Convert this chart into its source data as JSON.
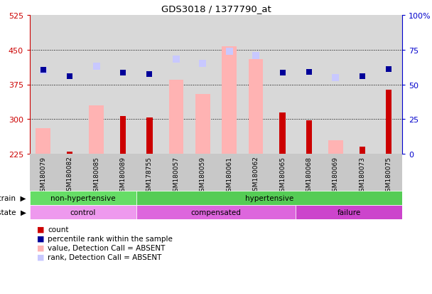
{
  "title": "GDS3018 / 1377790_at",
  "samples": [
    "GSM180079",
    "GSM180082",
    "GSM180085",
    "GSM180089",
    "GSM178755",
    "GSM180057",
    "GSM180059",
    "GSM180061",
    "GSM180062",
    "GSM180065",
    "GSM180068",
    "GSM180069",
    "GSM180073",
    "GSM180075"
  ],
  "count_values": [
    225,
    230,
    225,
    307,
    303,
    225,
    225,
    225,
    225,
    315,
    297,
    225,
    240,
    363
  ],
  "value_absent": [
    280,
    null,
    330,
    null,
    null,
    385,
    355,
    458,
    430,
    null,
    null,
    255,
    null,
    null
  ],
  "rank_absent": [
    405,
    null,
    415,
    null,
    null,
    430,
    420,
    447,
    438,
    null,
    null,
    390,
    null,
    null
  ],
  "percentile_dark": [
    407,
    393,
    null,
    400,
    398,
    null,
    null,
    null,
    null,
    400,
    402,
    null,
    393,
    408
  ],
  "ylim_left": [
    225,
    525
  ],
  "ylim_right": [
    0,
    100
  ],
  "yticks_left": [
    225,
    300,
    375,
    450,
    525
  ],
  "yticks_right": [
    0,
    25,
    50,
    75,
    100
  ],
  "strain_groups": [
    {
      "label": "non-hypertensive",
      "start": 0,
      "end": 3,
      "color": "#66dd66"
    },
    {
      "label": "hypertensive",
      "start": 4,
      "end": 13,
      "color": "#55cc55"
    }
  ],
  "disease_groups": [
    {
      "label": "control",
      "start": 0,
      "end": 3,
      "color": "#ee99ee"
    },
    {
      "label": "compensated",
      "start": 4,
      "end": 9,
      "color": "#dd66dd"
    },
    {
      "label": "failure",
      "start": 10,
      "end": 13,
      "color": "#cc44cc"
    }
  ],
  "count_color": "#cc0000",
  "value_absent_color": "#ffb3b3",
  "rank_absent_color": "#c8c8ff",
  "percentile_dark_color": "#000099",
  "bg_color": "#ffffff",
  "plot_bg": "#d8d8d8",
  "left_axis_color": "#cc0000",
  "right_axis_color": "#0000cc",
  "legend_items": [
    {
      "label": "count",
      "color": "#cc0000"
    },
    {
      "label": "percentile rank within the sample",
      "color": "#000099"
    },
    {
      "label": "value, Detection Call = ABSENT",
      "color": "#ffb3b3"
    },
    {
      "label": "rank, Detection Call = ABSENT",
      "color": "#c8c8ff"
    }
  ],
  "grid_yticks": [
    300,
    375,
    450
  ]
}
